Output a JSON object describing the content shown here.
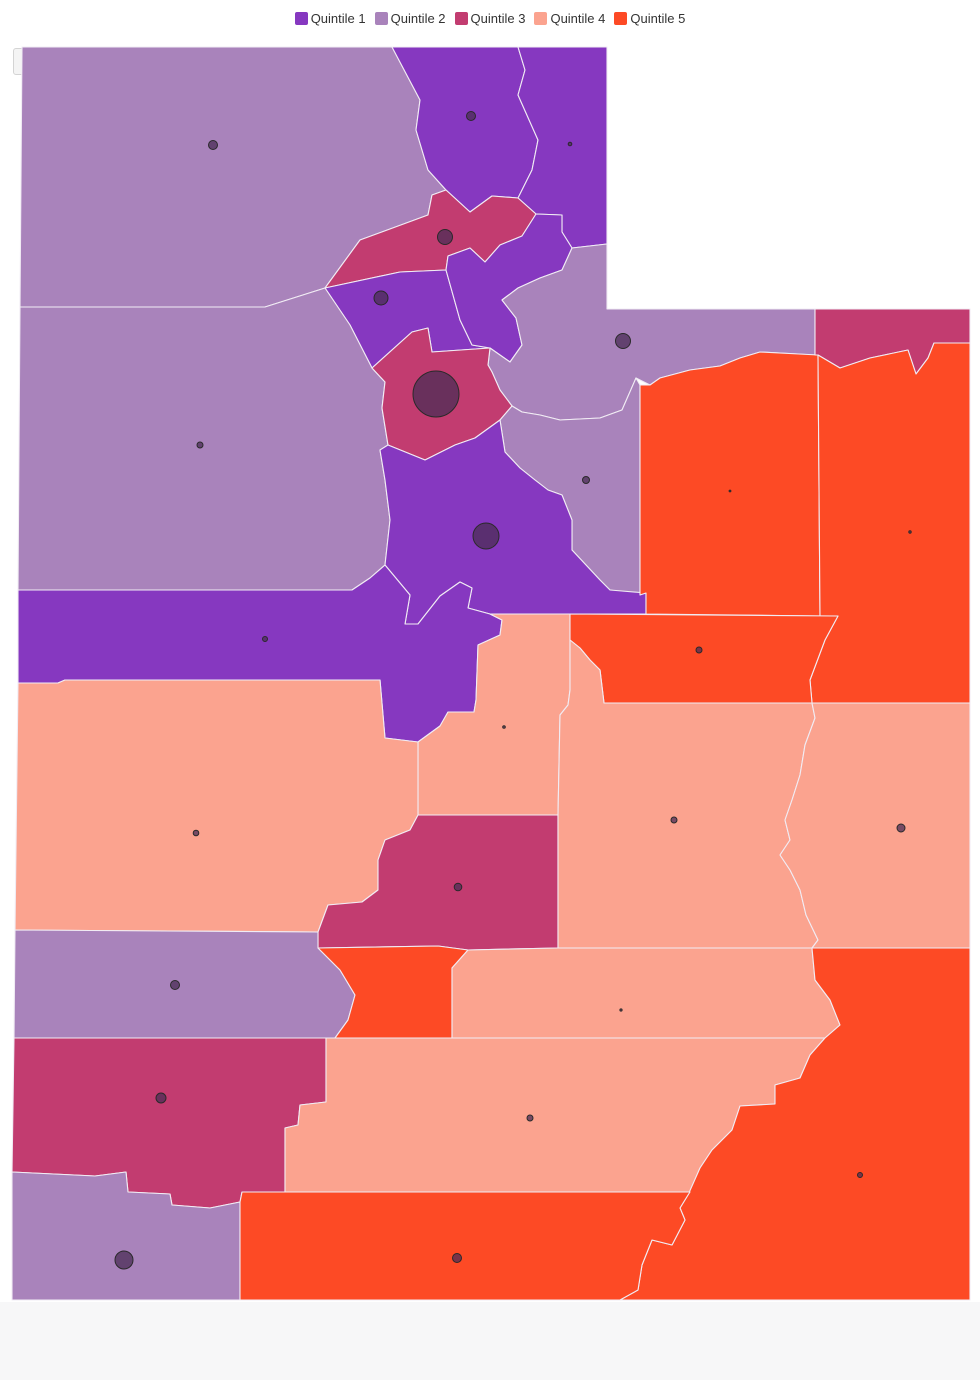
{
  "colors": {
    "q1": "#8638c0",
    "q2": "#a983bb",
    "q3": "#c23c70",
    "q4": "#fba38f",
    "q5": "#fd4a25",
    "bubble": "#4b2c55"
  },
  "legend": {
    "items": [
      {
        "label": "Quintile 1",
        "color": "#8638c0"
      },
      {
        "label": "Quintile 2",
        "color": "#a983bb"
      },
      {
        "label": "Quintile 3",
        "color": "#c23c70"
      },
      {
        "label": "Quintile 4",
        "color": "#fba38f"
      },
      {
        "label": "Quintile 5",
        "color": "#fd4a25"
      }
    ]
  },
  "toolbar": {
    "zoom_icon": "magnifier-icon"
  }
}
